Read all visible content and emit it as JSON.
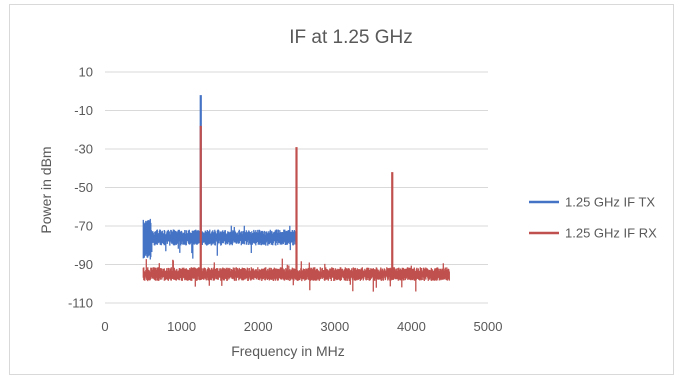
{
  "chart_data": {
    "type": "line",
    "title": "IF at 1.25 GHz",
    "xlabel": "Frequency in MHz",
    "ylabel": "Power in dBm",
    "xlim": [
      0,
      5000
    ],
    "ylim": [
      -110,
      10
    ],
    "xticks": [
      0,
      1000,
      2000,
      3000,
      4000,
      5000
    ],
    "yticks": [
      10,
      -10,
      -30,
      -50,
      -70,
      -90,
      -110
    ],
    "grid": "horizontal",
    "legend_position": "right",
    "series": [
      {
        "name": "1.25 GHz IF TX",
        "color": "#4472c4",
        "x_range": [
          500,
          2500
        ],
        "noise_floor": {
          "from": 500,
          "to": 2500,
          "center": -76,
          "spread": 3.5
        },
        "start_transient": {
          "x": [
            500,
            600
          ],
          "min": -88,
          "max": -66
        },
        "spikes": [
          {
            "x": 1250,
            "y": -2
          }
        ]
      },
      {
        "name": "1.25 GHz IF RX",
        "color": "#c0504d",
        "x_range": [
          500,
          4500
        ],
        "noise_floor": {
          "from": 500,
          "to": 4500,
          "center": -95,
          "spread": 3
        },
        "spikes": [
          {
            "x": 1250,
            "y": -18
          },
          {
            "x": 2500,
            "y": -29
          },
          {
            "x": 3750,
            "y": -42
          }
        ]
      }
    ]
  }
}
